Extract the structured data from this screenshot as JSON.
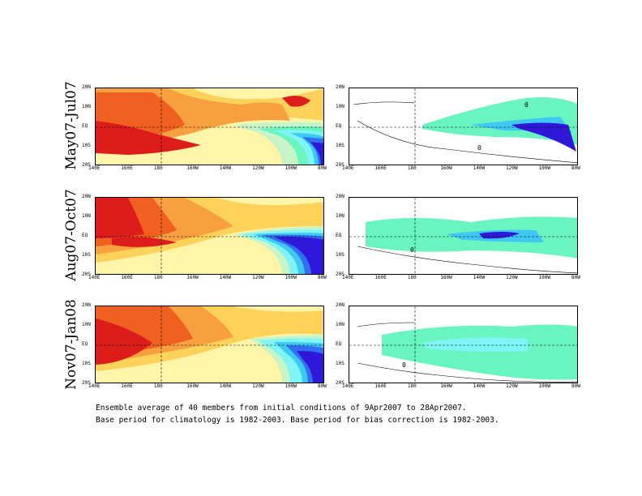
{
  "rows": [
    {
      "label": "May07-Jul07"
    },
    {
      "label": "Aug07-Oct07"
    },
    {
      "label": "Nov07-Jan08"
    }
  ],
  "y_ticks": [
    "20N",
    "10N",
    "EQ",
    "10S",
    "20S"
  ],
  "x_ticks": [
    "140E",
    "160E",
    "180",
    "160W",
    "140W",
    "120W",
    "100W",
    "80W"
  ],
  "contour_label_zero": "0",
  "caption": {
    "line1": "Ensemble average of 40 members from initial conditions of 9Apr2007 to 28Apr2007.",
    "line2": "Base period for climatology is 1982-2003. Base period for bias correction is 1982-2003."
  },
  "colors": {
    "dark_red": "#dd1c1c",
    "orange_red": "#f06020",
    "orange": "#f8a040",
    "light_orange": "#fcd25a",
    "yellow": "#fff5a8",
    "pale_green": "#c8f5c8",
    "aqua": "#6af5c0",
    "cyan": "#80f5f5",
    "light_blue": "#40c8f5",
    "blue": "#3070f0",
    "dark_blue": "#3018d8"
  }
}
